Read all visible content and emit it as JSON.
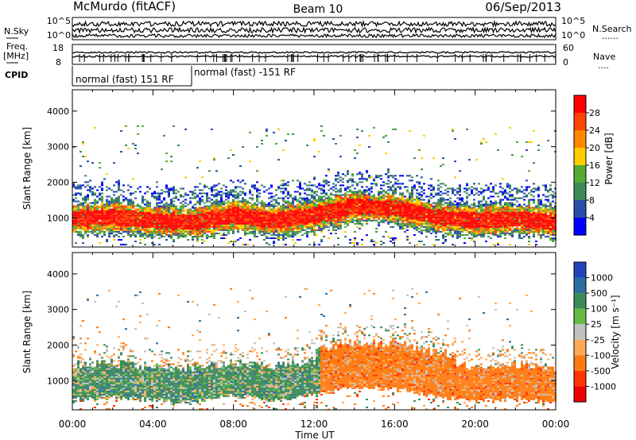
{
  "header": {
    "station": "McMurdo (fitACF)",
    "beam": "Beam 10",
    "date": "06/Sep/2013"
  },
  "noise_panel": {
    "left_label": "N.Sky",
    "right_label": "N.Search",
    "right_dots": "......",
    "left_ticks": [
      "10^5",
      "10^0"
    ],
    "right_ticks": [
      "10^5",
      "10^0"
    ]
  },
  "freq_panel": {
    "left_label_1": "Freq.",
    "left_label_2": "[MHz]",
    "right_label": "Nave",
    "right_dots": "....",
    "left_ticks": [
      "18",
      "8"
    ],
    "right_ticks": [
      "60",
      "0"
    ]
  },
  "cpid_panel": {
    "label": "CPID",
    "segments": [
      {
        "text": "normal (fast) 151 RF",
        "start_hour": 0,
        "end_hour": 6
      },
      {
        "text": "normal (fast) -151 RF",
        "start_hour": 6,
        "end_hour": 24
      }
    ]
  },
  "chart_data": [
    {
      "type": "heatmap",
      "parameter": "Power",
      "ylabel": "Slant Range [km]",
      "yticks": [
        "1000",
        "2000",
        "3000",
        "4000"
      ],
      "ylim": [
        180,
        4600
      ],
      "xlim": [
        0,
        24
      ],
      "colorbar_label": "Power [dB]",
      "colorbar_ticks": [
        "4",
        "8",
        "12",
        "16",
        "20",
        "24",
        "28"
      ],
      "colors": [
        "#0000ff",
        "#2a4ea8",
        "#3e8a5a",
        "#55aa33",
        "#ffcc00",
        "#ff8800",
        "#ff4400",
        "#ff0000"
      ],
      "echo_band_center_km": [
        [
          0,
          950
        ],
        [
          2,
          1000
        ],
        [
          4,
          900
        ],
        [
          6,
          850
        ],
        [
          8,
          1050
        ],
        [
          10,
          900
        ],
        [
          12,
          1050
        ],
        [
          14,
          1300
        ],
        [
          16,
          1250
        ],
        [
          18,
          1000
        ],
        [
          20,
          900
        ],
        [
          22,
          950
        ],
        [
          24,
          850
        ]
      ]
    },
    {
      "type": "heatmap",
      "parameter": "Velocity",
      "ylabel": "Slant Range [km]",
      "yticks": [
        "1000",
        "2000",
        "3000",
        "4000"
      ],
      "ylim": [
        180,
        4600
      ],
      "xlim": [
        0,
        24
      ],
      "colorbar_label": "Velocity [m s⁻¹]",
      "colorbar_ticks": [
        "1000",
        "500",
        "100",
        "25",
        "-25",
        "-100",
        "-500",
        "-1000"
      ],
      "colors": [
        "#2244bb",
        "#2a6ea0",
        "#3a8a5a",
        "#66bb44",
        "#c0c0c0",
        "#ffaa55",
        "#ff7a10",
        "#ff3300",
        "#ee0000"
      ],
      "dominant_velocity_sign": [
        [
          0,
          "positive"
        ],
        [
          12,
          "negative"
        ],
        [
          24,
          "negative"
        ]
      ]
    }
  ],
  "xaxis": {
    "ticks": [
      "00:00",
      "04:00",
      "08:00",
      "12:00",
      "16:00",
      "20:00",
      "00:00"
    ],
    "label": "Time UT"
  }
}
